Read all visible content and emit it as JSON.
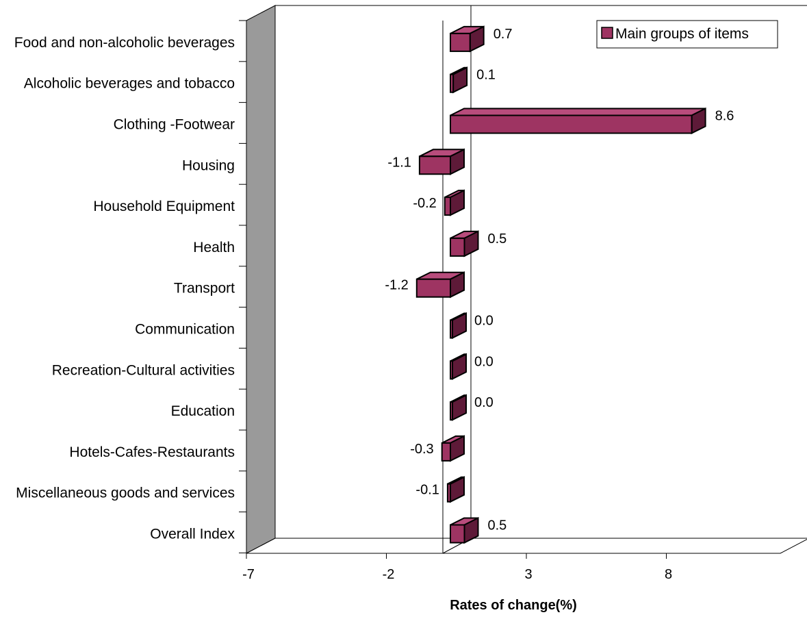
{
  "chart_data": {
    "type": "bar",
    "orientation": "horizontal",
    "categories": [
      "Food and non-alcoholic beverages",
      "Alcoholic beverages and tobacco",
      "Clothing -Footwear",
      "Housing",
      "Household Equipment",
      "Health",
      "Transport",
      "Communication",
      "Recreation-Cultural activities",
      "Education",
      "Hotels-Cafes-Restaurants",
      "Miscellaneous goods and services",
      "Overall Index"
    ],
    "series": [
      {
        "name": "Main groups of items",
        "values": [
          0.7,
          0.1,
          8.6,
          -1.1,
          -0.2,
          0.5,
          -1.2,
          0.0,
          0.0,
          0.0,
          -0.3,
          -0.1,
          0.5
        ],
        "labels": [
          "0.7",
          "0.1",
          "8.6",
          "-1.1",
          "-0.2",
          "0.5",
          "-1.2",
          "0.0",
          "0.0",
          "0.0",
          "-0.3",
          "-0.1",
          "0.5"
        ]
      }
    ],
    "xlabel": "Rates of change(%)",
    "ylabel": "",
    "xlim": [
      -7,
      13
    ],
    "xticks": [
      "-7",
      "-2",
      "3",
      "8"
    ],
    "grid": false,
    "legend_position": "top-right",
    "colors": {
      "bar_front": "#9E3462",
      "bar_top": "#B84C7C",
      "bar_side": "#5E1A38",
      "wall": "#9A9A9A",
      "floor": "#FFFFFF"
    }
  }
}
